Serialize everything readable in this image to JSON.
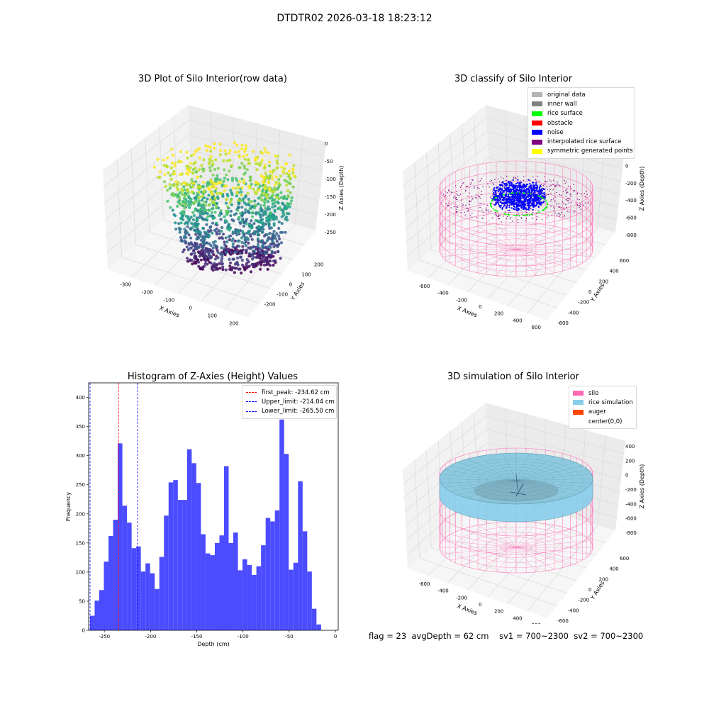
{
  "title": "DTDTR02 2026-03-18 18:23:12",
  "panels": {
    "raw": {
      "title": "3D Plot of Silo Interior(row data)",
      "xlabel": "X Axies",
      "ylabel": "Y Axies",
      "zlabel": "Z Axies (Depth)",
      "xticks": [
        "-300",
        "-200",
        "-100",
        "0",
        "100",
        "200"
      ],
      "yticks": [
        "200",
        "100",
        "0",
        "-100",
        "-200"
      ],
      "zticks": [
        "0",
        "-50",
        "-100",
        "-150",
        "-200",
        "-250"
      ]
    },
    "classify": {
      "title": "3D classify of Silo Interior",
      "xlabel": "X Axies",
      "ylabel": "Y Axies",
      "zlabel": "Z Axies (Depth)",
      "xticks": [
        "-600",
        "-400",
        "-200",
        "0",
        "200",
        "400",
        "600"
      ],
      "yticks": [
        "600",
        "400",
        "200",
        "0",
        "-200",
        "-400",
        "-600"
      ],
      "zticks": [
        "200",
        "0",
        "-200",
        "-400",
        "-600",
        "-800"
      ],
      "legend": [
        {
          "label": "original data",
          "color": "#b4b4b4"
        },
        {
          "label": "inner wall",
          "color": "#808080"
        },
        {
          "label": "rice surface",
          "color": "#00ff00"
        },
        {
          "label": "obstacle",
          "color": "#ff0000"
        },
        {
          "label": "noise",
          "color": "#0000ff"
        },
        {
          "label": "interpolated rice surface",
          "color": "#800080"
        },
        {
          "label": "symmetric generated points",
          "color": "#ffff00"
        }
      ]
    },
    "simulation": {
      "title": "3D simulation of Silo Interior",
      "xlabel": "X Axies",
      "ylabel": "Y Axies",
      "zlabel": "Z Axies (Depth)",
      "xticks": [
        "-600",
        "-400",
        "-200",
        "0",
        "200",
        "400",
        "600"
      ],
      "yticks": [
        "600",
        "400",
        "200",
        "0",
        "-200",
        "-400",
        "-600"
      ],
      "zticks": [
        "400",
        "200",
        "0",
        "-200",
        "-400",
        "-600",
        "-800"
      ],
      "legend": [
        {
          "label": "silo",
          "color": "#ff69b4"
        },
        {
          "label": "rice simulation",
          "color": "#87ceeb"
        },
        {
          "label": "auger",
          "color": "#ff4500"
        },
        {
          "label": "center(0,0)",
          "color": "none"
        }
      ]
    }
  },
  "chart_data": {
    "type": "bar",
    "title": "Histogram of Z-Axies (Height) Values",
    "xlabel": "Depth (cm)",
    "ylabel": "Frequency",
    "xlim": [
      -267,
      3
    ],
    "ylim": [
      0,
      425
    ],
    "xticks": [
      -250,
      -200,
      -150,
      -100,
      -50,
      0
    ],
    "yticks": [
      0,
      50,
      100,
      150,
      200,
      250,
      300,
      350,
      400
    ],
    "bar_color": "#4b4bff",
    "bin_start": -265.5,
    "bin_width": 5.0,
    "values": [
      25,
      51,
      69,
      118,
      162,
      190,
      321,
      214,
      185,
      141,
      144,
      101,
      115,
      98,
      71,
      126,
      197,
      254,
      258,
      224,
      224,
      311,
      287,
      253,
      165,
      132,
      129,
      150,
      163,
      282,
      150,
      168,
      103,
      122,
      112,
      95,
      110,
      146,
      193,
      187,
      206,
      362,
      303,
      104,
      116,
      256,
      170,
      101,
      37,
      10
    ],
    "lines": [
      {
        "label": "first_peak: -234.62 cm",
        "x": -234.62,
        "color": "#ff0000"
      },
      {
        "label": "Upper_limit: -214.04 cm",
        "x": -214.04,
        "color": "#0000ff"
      },
      {
        "label": "Lower_limit: -265.50 cm",
        "x": -265.5,
        "color": "#0000ff"
      }
    ]
  },
  "status": {
    "flag": "flag = 23",
    "avgDepth": "avgDepth = 62 cm",
    "sv1": "sv1 = 700~2300",
    "sv2": "sv2 = 700~2300"
  }
}
